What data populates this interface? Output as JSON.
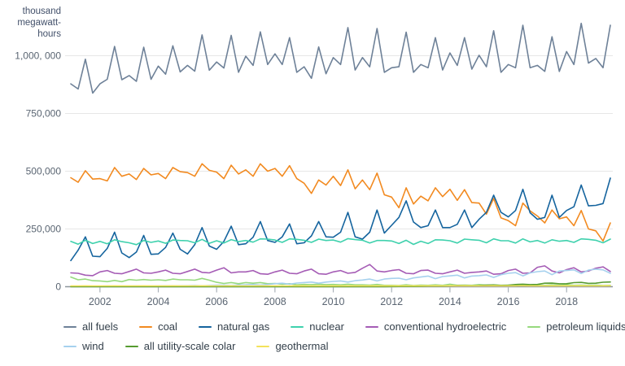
{
  "chart_data": {
    "type": "line",
    "frequency": "quarterly",
    "value_unit": "thousand megawatt-hours",
    "value_multiplier": 1000,
    "ylim": [
      0,
      1150000
    ],
    "grid": "horizontal-only",
    "legend_position": "bottom",
    "style": {
      "grid_color": "#e7e7e7",
      "axis_color": "#8d959c",
      "tick_color": "#aab2ba"
    },
    "y_axis": {
      "unit_lines": [
        "thousand",
        "megawatt-",
        "hours"
      ],
      "ticks": [
        {
          "label": "1,000, 000",
          "value": 1000000
        },
        {
          "label": "750,000",
          "value": 750000
        },
        {
          "label": "500,000",
          "value": 500000
        },
        {
          "label": "250,000",
          "value": 250000
        },
        {
          "label": "0",
          "value": 0
        }
      ]
    },
    "x_axis": {
      "start_year": 2001,
      "points_per_year": 4,
      "ticks": [
        "2002",
        "2004",
        "2006",
        "2008",
        "2010",
        "2012",
        "2014",
        "2016",
        "2018"
      ]
    },
    "legend_rows": [
      [
        0,
        1,
        2,
        3,
        4,
        5
      ],
      [
        6,
        7,
        8
      ]
    ],
    "series": [
      {
        "name": "all fuels",
        "color": "#6e8198",
        "values": [
          878,
          856,
          985,
          838,
          878,
          898,
          1040,
          896,
          914,
          889,
          1037,
          898,
          955,
          920,
          1043,
          930,
          958,
          933,
          1090,
          937,
          973,
          947,
          1088,
          928,
          998,
          958,
          1103,
          962,
          1008,
          962,
          1078,
          928,
          952,
          902,
          1038,
          922,
          992,
          962,
          1122,
          938,
          992,
          952,
          1118,
          928,
          948,
          952,
          1102,
          928,
          962,
          948,
          1078,
          938,
          1012,
          958,
          1078,
          942,
          1002,
          952,
          1108,
          928,
          962,
          948,
          1132,
          948,
          958,
          932,
          1082,
          932,
          1018,
          962,
          1140,
          968,
          988,
          948,
          1132
        ]
      },
      {
        "name": "coal",
        "color": "#f28a20",
        "values": [
          472,
          452,
          502,
          466,
          468,
          458,
          516,
          478,
          488,
          464,
          512,
          484,
          490,
          468,
          516,
          498,
          494,
          478,
          532,
          504,
          496,
          468,
          526,
          488,
          506,
          478,
          532,
          500,
          512,
          478,
          524,
          468,
          448,
          404,
          462,
          440,
          478,
          438,
          506,
          424,
          462,
          420,
          492,
          398,
          388,
          342,
          428,
          358,
          392,
          372,
          428,
          390,
          422,
          374,
          420,
          364,
          362,
          314,
          382,
          298,
          286,
          264,
          362,
          328,
          306,
          276,
          332,
          294,
          302,
          264,
          330,
          250,
          242,
          198,
          276
        ]
      },
      {
        "name": "natural gas",
        "color": "#15649e",
        "values": [
          113,
          158,
          216,
          132,
          130,
          166,
          236,
          146,
          126,
          150,
          222,
          140,
          142,
          170,
          232,
          162,
          142,
          182,
          256,
          176,
          162,
          196,
          262,
          182,
          186,
          214,
          282,
          200,
          192,
          216,
          272,
          186,
          190,
          220,
          282,
          216,
          214,
          236,
          322,
          216,
          206,
          236,
          332,
          232,
          266,
          300,
          372,
          280,
          256,
          264,
          332,
          256,
          256,
          270,
          332,
          256,
          292,
          322,
          396,
          322,
          302,
          330,
          422,
          320,
          292,
          300,
          396,
          300,
          330,
          346,
          440,
          350,
          352,
          360,
          470
        ]
      },
      {
        "name": "nuclear",
        "color": "#3fd1ad",
        "values": [
          196,
          184,
          201,
          187,
          196,
          186,
          203,
          195,
          190,
          182,
          200,
          192,
          198,
          188,
          202,
          200,
          199,
          190,
          205,
          188,
          199,
          189,
          204,
          195,
          200,
          193,
          207,
          206,
          202,
          192,
          207,
          205,
          201,
          192,
          206,
          200,
          202,
          193,
          208,
          204,
          201,
          189,
          200,
          200,
          198,
          187,
          201,
          183,
          197,
          187,
          203,
          202,
          199,
          189,
          206,
          203,
          201,
          190,
          207,
          199,
          199,
          189,
          207,
          194,
          200,
          189,
          203,
          197,
          200,
          192,
          207,
          205,
          201,
          190,
          206
        ]
      },
      {
        "name": "conventional hydroelectric",
        "color": "#a55cb5",
        "values": [
          60,
          58,
          50,
          48,
          64,
          70,
          58,
          56,
          66,
          76,
          60,
          58,
          64,
          72,
          58,
          56,
          66,
          76,
          62,
          60,
          72,
          82,
          60,
          64,
          64,
          70,
          56,
          54,
          64,
          72,
          58,
          56,
          68,
          76,
          56,
          54,
          64,
          70,
          58,
          62,
          80,
          96,
          68,
          64,
          70,
          74,
          58,
          56,
          70,
          72,
          58,
          56,
          64,
          72,
          58,
          62,
          64,
          68,
          54,
          56,
          70,
          76,
          58,
          60,
          84,
          90,
          68,
          60,
          74,
          82,
          64,
          68,
          80,
          86,
          66
        ]
      },
      {
        "name": "petroleum liquids",
        "color": "#96d97e",
        "values": [
          42,
          30,
          33,
          26,
          25,
          22,
          27,
          22,
          31,
          28,
          31,
          28,
          30,
          27,
          33,
          30,
          30,
          28,
          36,
          28,
          19,
          14,
          18,
          13,
          18,
          15,
          18,
          13,
          14,
          11,
          13,
          8,
          10,
          9,
          11,
          9,
          10,
          8,
          11,
          8,
          8,
          7,
          10,
          6,
          6,
          5,
          8,
          5,
          7,
          6,
          8,
          6,
          11,
          6,
          7,
          6,
          9,
          7,
          8,
          6,
          7,
          6,
          8,
          6,
          6,
          6,
          8,
          6,
          9,
          6,
          7,
          6,
          7,
          5,
          6
        ]
      },
      {
        "name": "wind",
        "color": "#a6d1ee",
        "values": [
          1.5,
          2,
          1.4,
          1.8,
          2.6,
          3,
          2,
          2.8,
          2.8,
          3.2,
          2.4,
          2.9,
          3.4,
          4,
          3,
          3.8,
          4.2,
          5,
          3.8,
          4.8,
          6.2,
          7.2,
          5.4,
          7.8,
          8.2,
          9.6,
          7,
          9.8,
          13,
          15,
          11,
          16,
          18,
          20,
          15,
          20,
          23,
          25,
          20,
          26,
          29,
          33,
          25,
          33,
          36,
          37,
          30,
          38,
          42,
          46,
          35,
          44,
          47,
          50,
          38,
          46,
          48,
          51,
          40,
          52,
          58,
          61,
          47,
          60,
          65,
          68,
          52,
          68,
          70,
          73,
          57,
          72,
          76,
          73,
          58
        ]
      },
      {
        "name": "all utility-scale colar",
        "color": "#569b30",
        "values": [
          0.1,
          0.1,
          0.1,
          0.1,
          0.1,
          0.1,
          0.1,
          0.1,
          0.1,
          0.1,
          0.1,
          0.1,
          0.1,
          0.1,
          0.1,
          0.1,
          0.1,
          0.1,
          0.1,
          0.1,
          0.1,
          0.1,
          0.1,
          0.1,
          0.1,
          0.1,
          0.1,
          0.1,
          0.1,
          0.1,
          0.1,
          0.1,
          0.1,
          0.1,
          0.1,
          0.1,
          0.1,
          0.1,
          0.1,
          0.1,
          0.3,
          0.5,
          0.6,
          0.4,
          0.8,
          1.2,
          1.4,
          0.9,
          1.5,
          2.4,
          2.8,
          2.3,
          3.2,
          4.8,
          5.3,
          4.4,
          4.8,
          6.8,
          7.4,
          5.7,
          6.5,
          9.5,
          11,
          9,
          10,
          15,
          15.5,
          12.5,
          13,
          17.5,
          18.5,
          14.5,
          15,
          19.5,
          20.5
        ]
      },
      {
        "name": "geothermal",
        "color": "#f3e25c",
        "values": [
          3.6,
          3.5,
          3.7,
          3.6,
          3.6,
          3.4,
          3.7,
          3.5,
          3.6,
          3.5,
          3.7,
          3.6,
          3.6,
          3.5,
          3.8,
          3.6,
          3.6,
          3.5,
          3.7,
          3.6,
          3.6,
          3.5,
          3.8,
          3.6,
          3.6,
          3.5,
          3.8,
          3.7,
          3.7,
          3.6,
          3.8,
          3.7,
          3.7,
          3.6,
          3.8,
          3.7,
          3.8,
          3.7,
          3.9,
          3.8,
          3.8,
          3.7,
          3.9,
          3.8,
          3.9,
          3.7,
          4,
          3.8,
          4,
          3.9,
          4.1,
          4,
          4.1,
          3.9,
          4.1,
          4,
          4,
          3.8,
          4.1,
          3.9,
          4,
          3.9,
          4.2,
          4,
          4,
          3.9,
          4.1,
          4,
          4.1,
          3.9,
          4.2,
          4,
          4,
          3.9,
          4.1
        ]
      }
    ]
  }
}
